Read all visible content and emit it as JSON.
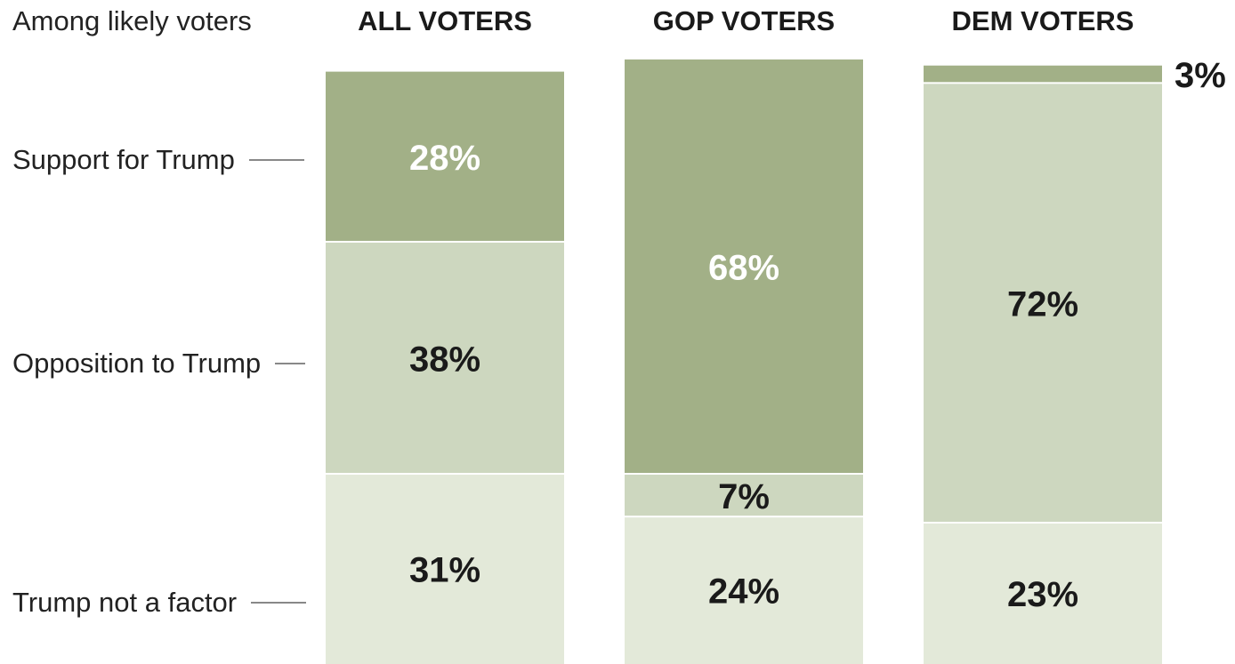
{
  "subtitle": "Among likely voters",
  "colors": {
    "support": "#a2b087",
    "opposition": "#cdd7bf",
    "not_factor": "#e3e9d9",
    "label_light": "#ffffff",
    "label_dark": "#1a1a1a"
  },
  "chart_data": {
    "type": "bar",
    "stacked": true,
    "categories": [
      "ALL VOTERS",
      "GOP VOTERS",
      "DEM VOTERS"
    ],
    "series": [
      {
        "name": "Support for Trump",
        "values": [
          28,
          68,
          3
        ],
        "labels": [
          "28%",
          "68%",
          "3%"
        ]
      },
      {
        "name": "Opposition to Trump",
        "values": [
          38,
          7,
          72
        ],
        "labels": [
          "38%",
          "7%",
          "72%"
        ]
      },
      {
        "name": "Trump not a factor",
        "values": [
          31,
          24,
          23
        ],
        "labels": [
          "31%",
          "24%",
          "23%"
        ]
      }
    ],
    "unit": "%"
  }
}
